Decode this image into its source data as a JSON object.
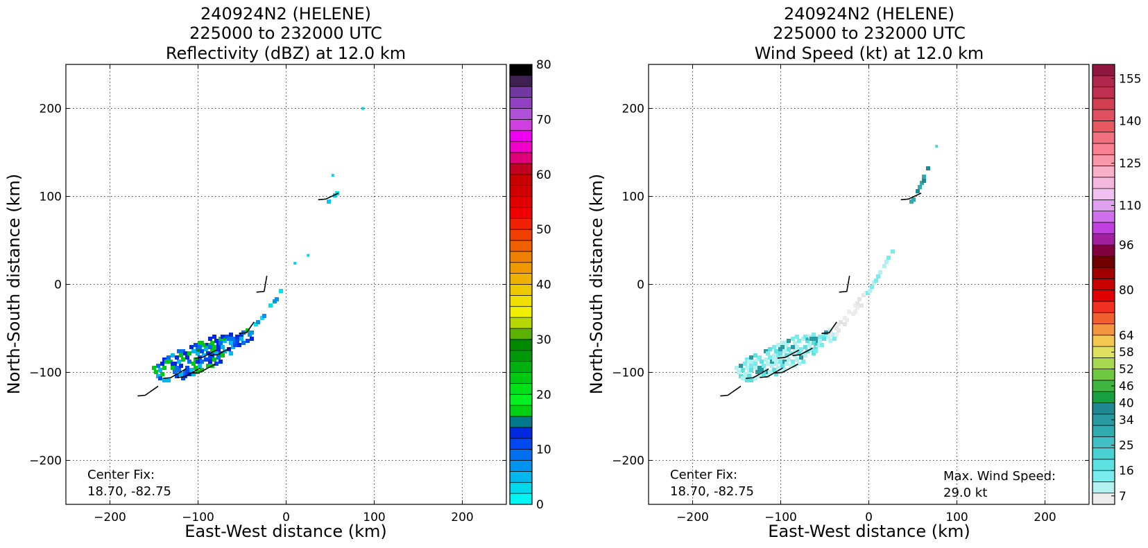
{
  "chart_data": [
    {
      "type": "heatmap",
      "title_lines": [
        "240924N2 (HELENE)",
        "225000 to 232000 UTC",
        "Reflectivity (dBZ) at 12.0 km"
      ],
      "xlabel": "East-West distance (km)",
      "ylabel": "North-South distance (km)",
      "xlim": [
        -250,
        250
      ],
      "ylim": [
        -250,
        250
      ],
      "xticks": [
        -200,
        -100,
        0,
        100,
        200
      ],
      "yticks": [
        -200,
        -100,
        0,
        100,
        200
      ],
      "grid": true,
      "annotation_lines": [
        "Center Fix:",
        "18.70, -82.75"
      ],
      "colorbar": {
        "min": 0,
        "max": 80,
        "ticks": [
          0,
          10,
          20,
          30,
          40,
          50,
          60,
          70,
          80
        ],
        "colors": [
          "#00f5f5",
          "#00d8ee",
          "#00b8ee",
          "#0094f0",
          "#0070f0",
          "#0048f0",
          "#0028e0",
          "#007a8a",
          "#00d010",
          "#00f020",
          "#00e018",
          "#00c810",
          "#00b010",
          "#009808",
          "#008800",
          "#5cb000",
          "#b4d800",
          "#f0ef00",
          "#f0e000",
          "#f0c800",
          "#f0b000",
          "#f09800",
          "#f08000",
          "#f06000",
          "#f04000",
          "#f02000",
          "#f00000",
          "#e00000",
          "#d00000",
          "#c80000",
          "#c00020",
          "#e0007a",
          "#f000c8",
          "#f000f0",
          "#d040e0",
          "#b050d8",
          "#9040c0",
          "#7038a0",
          "#402050",
          "#000000"
        ]
      },
      "sweeps": [
        {
          "name": "main-band",
          "xy": [
            [
              -148,
              -100
            ],
            [
              -45,
              -55
            ]
          ],
          "half_width_km": 18,
          "colors": [
            "#0028e0",
            "#00c810",
            "#0070f0",
            "#00b8ee",
            "#0048f0"
          ]
        },
        {
          "name": "inner-band",
          "xy": [
            [
              -45,
              -55
            ],
            [
              -8,
              -5
            ]
          ],
          "half_width_km": 4,
          "colors": [
            "#00e0ee",
            "#0094f0"
          ]
        },
        {
          "name": "north-band",
          "xy": [
            [
              46,
              96
            ],
            [
              58,
              112
            ]
          ],
          "half_width_km": 4,
          "colors": [
            "#00e0ee",
            "#00c8ee"
          ]
        }
      ],
      "echoes": [
        {
          "x": 87,
          "y": 200,
          "z": 2
        },
        {
          "x": 53,
          "y": 124,
          "z": 2
        },
        {
          "x": 25,
          "y": 33,
          "z": 2
        },
        {
          "x": 10,
          "y": 24,
          "z": 2
        },
        {
          "x": -100,
          "y": -75,
          "z": 28
        },
        {
          "x": -70,
          "y": -62,
          "z": 24
        },
        {
          "x": -90,
          "y": -68,
          "z": 12
        }
      ],
      "barbs": [
        {
          "x": -160,
          "y": -126,
          "len_km": 18,
          "dir": 55
        },
        {
          "x": -131,
          "y": -106,
          "len_km": 20,
          "dir": 60
        },
        {
          "x": -115,
          "y": -105,
          "len_km": 20,
          "dir": 60
        },
        {
          "x": -98,
          "y": -100,
          "len_km": 20,
          "dir": 62
        },
        {
          "x": -95,
          "y": -83,
          "len_km": 18,
          "dir": 62
        },
        {
          "x": -78,
          "y": -80,
          "len_km": 16,
          "dir": 62
        },
        {
          "x": -45,
          "y": -55,
          "len_km": 15,
          "dir": 35
        },
        {
          "x": -25,
          "y": -8,
          "len_km": 18,
          "dir": 10
        },
        {
          "x": 45,
          "y": 97,
          "len_km": 16,
          "dir": 65
        }
      ]
    },
    {
      "type": "heatmap",
      "title_lines": [
        "240924N2 (HELENE)",
        "225000 to 232000 UTC",
        "Wind Speed (kt) at 12.0 km"
      ],
      "xlabel": "East-West distance (km)",
      "ylabel": "North-South distance (km)",
      "xlim": [
        -250,
        250
      ],
      "ylim": [
        -250,
        250
      ],
      "xticks": [
        -200,
        -100,
        0,
        100,
        200
      ],
      "yticks": [
        -200,
        -100,
        0,
        100,
        200
      ],
      "grid": true,
      "annotation_lines": [
        "Center Fix:",
        "18.70, -82.75"
      ],
      "annotation2_lines": [
        "Max. Wind Speed:",
        "29.0 kt"
      ],
      "colorbar": {
        "min": 4,
        "max": 160,
        "ticks": [
          7,
          16,
          25,
          34,
          40,
          46,
          52,
          58,
          64,
          80,
          96,
          110,
          125,
          140,
          155
        ],
        "colors": [
          "#ececec",
          "#b4f0f0",
          "#78ecec",
          "#5ce0e0",
          "#48d0d2",
          "#40c0c4",
          "#30acb0",
          "#289aa0",
          "#208890",
          "#18a040",
          "#40b440",
          "#70c840",
          "#a8d850",
          "#e0e060",
          "#f4c850",
          "#f49640",
          "#f06030",
          "#f03020",
          "#e00000",
          "#c80000",
          "#a00000",
          "#700000",
          "#800040",
          "#a020a0",
          "#c040e0",
          "#d070ee",
          "#e0a0f0",
          "#f0c0f0",
          "#f4b8e0",
          "#f8b0c8",
          "#f898a8",
          "#f88090",
          "#f07080",
          "#e85860",
          "#e05060",
          "#d04050",
          "#c03050",
          "#b02850",
          "#901840"
        ]
      },
      "sweeps": [
        {
          "name": "main-band",
          "xy": [
            [
              -148,
              -100
            ],
            [
              -45,
              -55
            ]
          ],
          "half_width_km": 18,
          "colors": [
            "#78ecec",
            "#b4f0f0",
            "#289aa0",
            "#5ce0e0",
            "#b4f0f0"
          ]
        },
        {
          "name": "inner-band",
          "xy": [
            [
              -45,
              -55
            ],
            [
              -5,
              -8
            ]
          ],
          "half_width_km": 6,
          "colors": [
            "#ececec",
            "#e4e4e4"
          ]
        },
        {
          "name": "ne-band",
          "xy": [
            [
              -5,
              -8
            ],
            [
              28,
              45
            ]
          ],
          "half_width_km": 4,
          "colors": [
            "#b4f0f0",
            "#78ecec"
          ]
        },
        {
          "name": "north-band",
          "xy": [
            [
              46,
              96
            ],
            [
              65,
              135
            ]
          ],
          "half_width_km": 4,
          "colors": [
            "#208890",
            "#30acb0"
          ]
        },
        {
          "name": "north-tip",
          "xy": [
            [
              75,
              160
            ],
            [
              80,
              172
            ]
          ],
          "half_width_km": 2,
          "colors": [
            "#40c0c4"
          ]
        }
      ],
      "echoes": [
        {
          "x": 77,
          "y": 157,
          "z": 22
        },
        {
          "x": -70,
          "y": -62,
          "z": 28
        },
        {
          "x": -60,
          "y": -68,
          "z": 26
        }
      ],
      "barbs": [
        {
          "x": -160,
          "y": -126,
          "len_km": 18,
          "dir": 55
        },
        {
          "x": -131,
          "y": -106,
          "len_km": 20,
          "dir": 60
        },
        {
          "x": -115,
          "y": -105,
          "len_km": 20,
          "dir": 60
        },
        {
          "x": -98,
          "y": -100,
          "len_km": 20,
          "dir": 62
        },
        {
          "x": -95,
          "y": -83,
          "len_km": 18,
          "dir": 62
        },
        {
          "x": -78,
          "y": -80,
          "len_km": 16,
          "dir": 62
        },
        {
          "x": -45,
          "y": -55,
          "len_km": 15,
          "dir": 35
        },
        {
          "x": -25,
          "y": -8,
          "len_km": 18,
          "dir": 10
        },
        {
          "x": 45,
          "y": 97,
          "len_km": 16,
          "dir": 65
        }
      ]
    }
  ]
}
